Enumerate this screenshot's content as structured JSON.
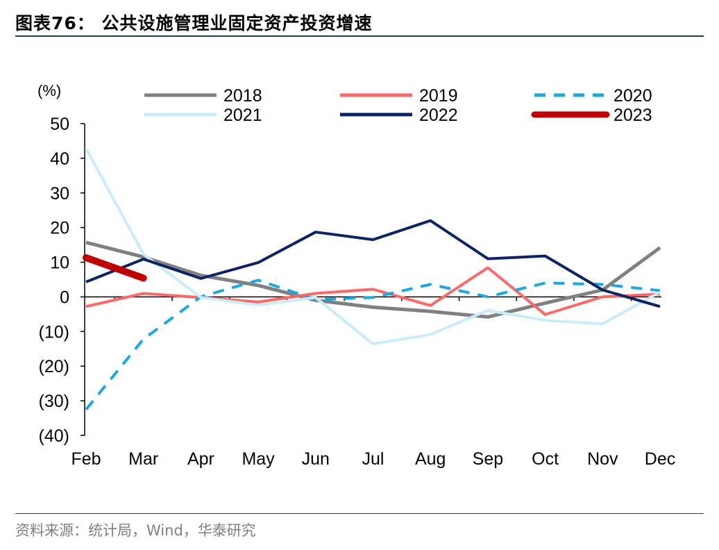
{
  "header": {
    "title": "图表76： 公共设施管理业固定资产投资增速"
  },
  "footer": {
    "source": "资料来源：统计局，Wind，华泰研究"
  },
  "colors": {
    "rule": "#1f3864"
  },
  "chart_data": {
    "type": "line",
    "ylabel": "(%)",
    "ylim": [
      -40,
      50
    ],
    "yticks": [
      50,
      40,
      30,
      20,
      10,
      0,
      -10,
      -20,
      -30,
      -40
    ],
    "ytick_labels": [
      "50",
      "40",
      "30",
      "20",
      "10",
      "0",
      "(10)",
      "(20)",
      "(30)",
      "(40)"
    ],
    "categories": [
      "Feb",
      "Mar",
      "Apr",
      "May",
      "Jun",
      "Jul",
      "Aug",
      "Sep",
      "Oct",
      "Nov",
      "Dec"
    ],
    "grid": false,
    "legend_position": "top",
    "series": [
      {
        "name": "2018",
        "color": "#808080",
        "dash": false,
        "width": 5,
        "values": [
          15.7,
          11.5,
          6.2,
          3.3,
          -1.0,
          -3.0,
          -4.2,
          -5.8,
          -1.8,
          2.0,
          14.2
        ]
      },
      {
        "name": "2019",
        "color": "#ff6666",
        "dash": false,
        "width": 4,
        "values": [
          -2.8,
          1.0,
          -0.2,
          -1.5,
          1.0,
          2.2,
          -2.5,
          8.4,
          -5.1,
          0.0,
          0.8
        ]
      },
      {
        "name": "2020",
        "color": "#1aa7e3",
        "dash": true,
        "width": 4,
        "values": [
          -32.5,
          -12.2,
          0.0,
          4.8,
          -0.8,
          -0.2,
          3.6,
          0.0,
          4.0,
          3.6,
          1.8
        ]
      },
      {
        "name": "2021",
        "color": "#c9ecfa",
        "dash": false,
        "width": 4,
        "values": [
          42.8,
          12.3,
          -0.2,
          -2.4,
          -0.2,
          -13.6,
          -10.9,
          -3.9,
          -6.8,
          -7.8,
          1.4
        ]
      },
      {
        "name": "2022",
        "color": "#0b2466",
        "dash": false,
        "width": 4,
        "values": [
          4.3,
          10.9,
          5.3,
          9.9,
          18.7,
          16.5,
          22.0,
          11.0,
          11.8,
          2.0,
          -2.8
        ]
      },
      {
        "name": "2023",
        "color": "#c00000",
        "dash": false,
        "width": 10,
        "values": [
          11.3,
          5.4,
          null,
          null,
          null,
          null,
          null,
          null,
          null,
          null,
          null
        ]
      }
    ]
  }
}
